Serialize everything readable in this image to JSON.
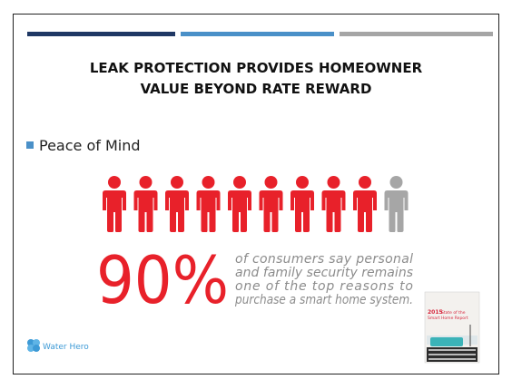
{
  "header": {
    "title_lines": [
      "LEAK PROTECTION PROVIDES HOMEOWNER",
      "VALUE BEYOND RATE REWARD"
    ]
  },
  "bullet": "Peace of Mind",
  "stat": {
    "figure": "90%",
    "description_lines": [
      "of consumers say personal",
      "and family security remains",
      "one of the top reasons to",
      "purchase a smart home system."
    ]
  },
  "logo": "Water Hero",
  "report": {
    "year": "2015",
    "title_lines": [
      "State of the",
      "Smart Home Report"
    ]
  }
}
